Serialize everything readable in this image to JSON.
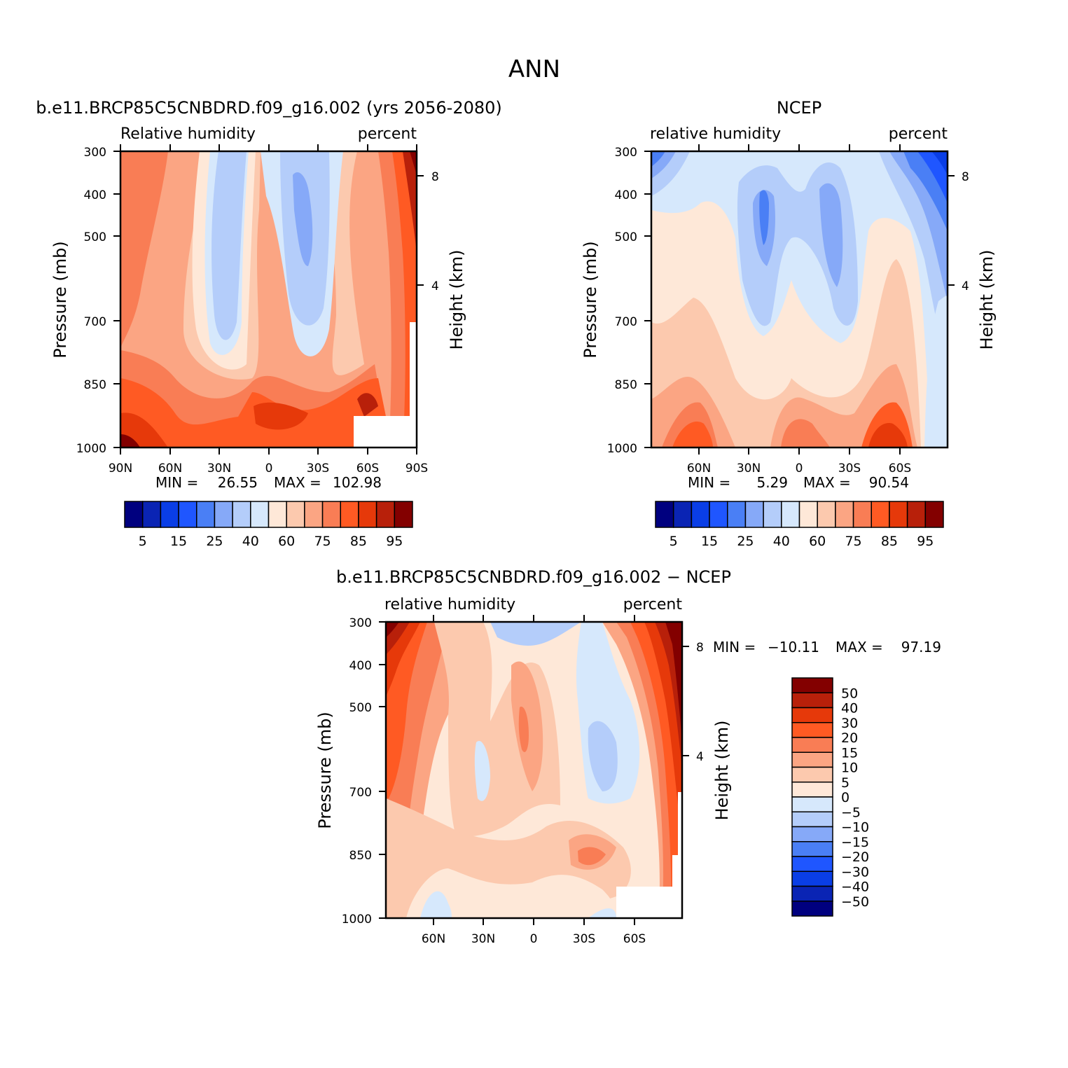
{
  "figure": {
    "title": "ANN"
  },
  "colors": {
    "abs_scale": [
      "#00007f",
      "#0a24b4",
      "#0a3ee6",
      "#1f56ff",
      "#4a7ff5",
      "#86a9f8",
      "#b4cdfa",
      "#d6e8fc",
      "#fee8d8",
      "#fcc9ae",
      "#fba583",
      "#f97d55",
      "#ff5a23",
      "#e6390a",
      "#b8200a",
      "#830000"
    ],
    "diff_scale": [
      "#00007f",
      "#0a24b4",
      "#0a3ee6",
      "#1f56ff",
      "#4a7ff5",
      "#86a9f8",
      "#b4cdfa",
      "#d6e8fc",
      "#fee8d8",
      "#fcc9ae",
      "#fba583",
      "#f97d55",
      "#ff5a23",
      "#e6390a",
      "#b8200a",
      "#830000"
    ]
  },
  "chart_data": [
    {
      "type": "heatmap",
      "title": "b.e11.BRCP85C5CNBDRD.f09_g16.002 (yrs 2056-2080)",
      "left_label": "Relative humidity",
      "right_label": "percent",
      "ylabel": "Pressure (mb)",
      "ylabel_right": "Height (km)",
      "x_ticks": [
        "90N",
        "60N",
        "30N",
        "0",
        "30S",
        "60S",
        "90S"
      ],
      "y_ticks": [
        "300",
        "400",
        "500",
        "700",
        "850",
        "1000"
      ],
      "y_right_ticks": [
        "8",
        "4"
      ],
      "min_label": "MIN =",
      "min_value": "26.55",
      "max_label": "MAX =",
      "max_value": "102.98",
      "colorbar_labels": [
        "5",
        "15",
        "25",
        "40",
        "60",
        "75",
        "85",
        "95"
      ]
    },
    {
      "type": "heatmap",
      "title": "NCEP",
      "left_label": "relative humidity",
      "right_label": "percent",
      "ylabel": "Pressure (mb)",
      "ylabel_right": "Height (km)",
      "x_ticks": [
        "60N",
        "30N",
        "0",
        "30S",
        "60S"
      ],
      "y_ticks": [
        "300",
        "400",
        "500",
        "700",
        "850",
        "1000"
      ],
      "y_right_ticks": [
        "8",
        "4"
      ],
      "min_label": "MIN =",
      "min_value": "5.29",
      "max_label": "MAX =",
      "max_value": "90.54",
      "colorbar_labels": [
        "5",
        "15",
        "25",
        "40",
        "60",
        "75",
        "85",
        "95"
      ]
    },
    {
      "type": "heatmap",
      "title": "b.e11.BRCP85C5CNBDRD.f09_g16.002 − NCEP",
      "left_label": "relative humidity",
      "right_label": "percent",
      "ylabel": "Pressure (mb)",
      "ylabel_right": "Height (km)",
      "x_ticks": [
        "60N",
        "30N",
        "0",
        "30S",
        "60S"
      ],
      "y_ticks": [
        "300",
        "400",
        "500",
        "700",
        "850",
        "1000"
      ],
      "y_right_ticks": [
        "8",
        "4"
      ],
      "min_label": "MIN =",
      "min_value": "−10.11",
      "max_label": "MAX =",
      "max_value": "97.19",
      "colorbar_labels": [
        "50",
        "40",
        "30",
        "20",
        "15",
        "10",
        "5",
        "0",
        "−5",
        "−10",
        "−15",
        "−20",
        "−30",
        "−40",
        "−50"
      ]
    }
  ]
}
